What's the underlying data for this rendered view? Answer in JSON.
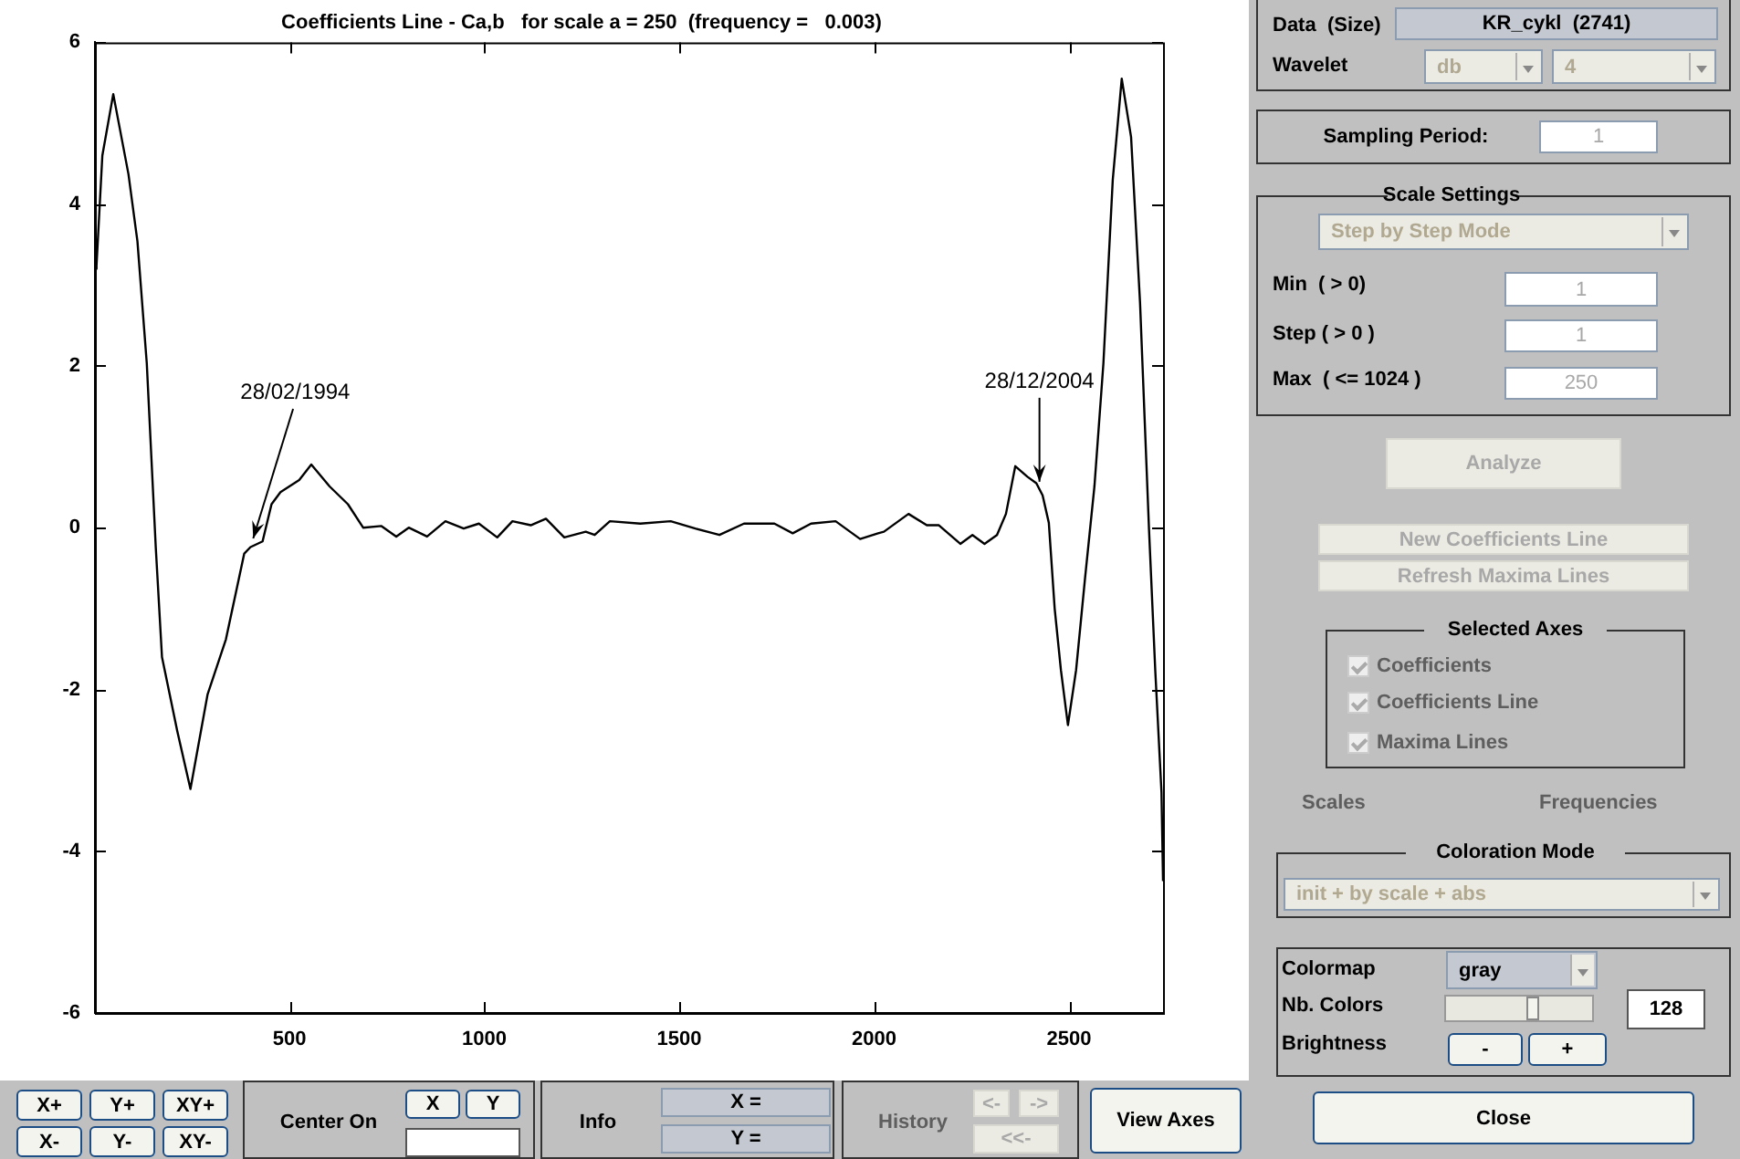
{
  "chart_data": [
    {
      "type": "line",
      "title": "Coefficients Line - Ca,b   for scale a = 250  (frequency =   0.003)",
      "xlim": [
        1,
        2741
      ],
      "xticks": [
        500,
        1000,
        1500,
        2000,
        2500
      ],
      "ylim": [
        -6,
        6
      ],
      "yticks": [
        -6,
        -4,
        -2,
        0,
        2,
        4,
        6
      ],
      "annotations": [
        {
          "text": "28/02/1994",
          "x": 407,
          "y": -0.2
        },
        {
          "text": "28/12/2004",
          "x": 2424,
          "y": 0.5
        }
      ],
      "series": [
        {
          "color": "#000000",
          "x": [
            1,
            5,
            20,
            48,
            87,
            110,
            134,
            157,
            173,
            212,
            246,
            290,
            306,
            337,
            384,
            400,
            431,
            454,
            477,
            525,
            556,
            603,
            650,
            689,
            736,
            774,
            806,
            853,
            900,
            947,
            986,
            1033,
            1072,
            1119,
            1158,
            1205,
            1260,
            1283,
            1322,
            1400,
            1478,
            1541,
            1603,
            1666,
            1744,
            1791,
            1838,
            1901,
            1964,
            2010,
            2025,
            2088,
            2135,
            2166,
            2221,
            2252,
            2283,
            2315,
            2338,
            2362,
            2393,
            2416,
            2432,
            2448,
            2463,
            2479,
            2497,
            2518,
            2541,
            2565,
            2588,
            2612,
            2635,
            2659,
            2682,
            2705,
            2721,
            2737,
            2741
          ],
          "values": [
            3.2,
            3.24,
            4.6,
            5.36,
            4.37,
            3.54,
            2.03,
            -0.24,
            -1.6,
            -2.51,
            -3.23,
            -2.06,
            -1.83,
            -1.38,
            -0.32,
            -0.24,
            -0.17,
            0.29,
            0.44,
            0.59,
            0.78,
            0.51,
            0.29,
            0.0,
            0.02,
            -0.11,
            0.0,
            -0.11,
            0.08,
            -0.01,
            0.05,
            -0.12,
            0.08,
            0.03,
            0.11,
            -0.12,
            -0.05,
            -0.09,
            0.08,
            0.05,
            0.08,
            -0.01,
            -0.09,
            0.05,
            0.05,
            -0.07,
            0.05,
            0.08,
            -0.14,
            -0.07,
            -0.05,
            0.17,
            0.03,
            0.03,
            -0.2,
            -0.09,
            -0.2,
            -0.09,
            0.17,
            0.76,
            0.63,
            0.55,
            0.4,
            0.06,
            -1.0,
            -1.76,
            -2.44,
            -1.76,
            -0.62,
            0.51,
            2.03,
            4.3,
            5.55,
            4.83,
            2.78,
            -0.02,
            -1.76,
            -3.27,
            -4.37
          ]
        }
      ]
    },
    {
      "type": "other",
      "annotations": [
        "Data  (Size)",
        "KR_cykl  (2741)",
        "Wavelet",
        "db",
        "4",
        "Sampling Period:",
        "1",
        "Scale Settings",
        "Step by Step Mode",
        "Min  ( > 0)",
        "1",
        "Step ( > 0 )",
        "1",
        "Max  ( <= 1024 )",
        "250",
        "Analyze",
        "New Coefficients Line",
        "Refresh Maxima Lines",
        "Selected Axes",
        "Coefficients",
        "Coefficients Line",
        "Maxima Lines",
        "Scales",
        "Frequencies",
        "Coloration Mode",
        "init + by scale + abs",
        "Colormap",
        "gray",
        "Nb. Colors",
        "128",
        "Brightness",
        "-",
        "+",
        "Close",
        "X+",
        "Y+",
        "XY+",
        "X-",
        "Y-",
        "XY-",
        "Center On",
        "X",
        "Y",
        "Info",
        "X =",
        "Y =",
        "History",
        "<-",
        "->",
        "<<-",
        "View Axes"
      ]
    }
  ]
}
